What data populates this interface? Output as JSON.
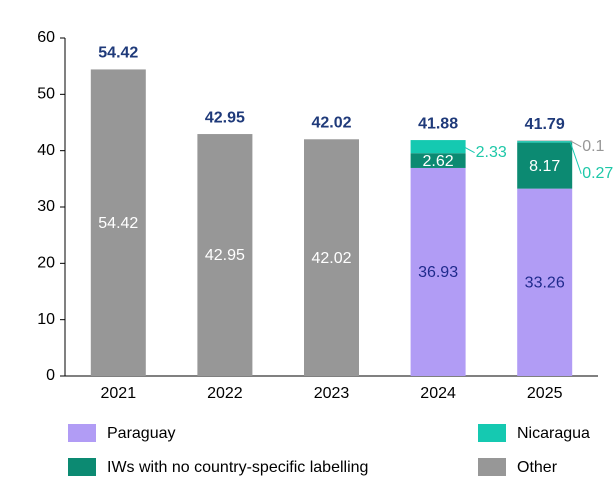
{
  "chart_data": {
    "type": "stacked_bar",
    "categories": [
      "2021",
      "2022",
      "2023",
      "2024",
      "2025"
    ],
    "series": [
      {
        "name": "Paraguay",
        "color": "#b19cf5",
        "values": [
          null,
          null,
          null,
          36.93,
          33.26
        ]
      },
      {
        "name": "IWs with no country-specific labelling",
        "color": "#0c8a72",
        "values": [
          null,
          null,
          null,
          2.62,
          8.17
        ]
      },
      {
        "name": "Nicaragua",
        "color": "#15c9b1",
        "values": [
          null,
          null,
          null,
          2.33,
          0.27
        ]
      },
      {
        "name": "Other",
        "color": "#979797",
        "values": [
          54.42,
          42.95,
          42.02,
          null,
          0.1
        ]
      }
    ],
    "totals": [
      54.42,
      42.95,
      42.02,
      41.88,
      41.79
    ],
    "ylim": [
      0,
      60
    ],
    "yticks": [
      0,
      10,
      20,
      30,
      40,
      50,
      60
    ],
    "grid": false
  }
}
